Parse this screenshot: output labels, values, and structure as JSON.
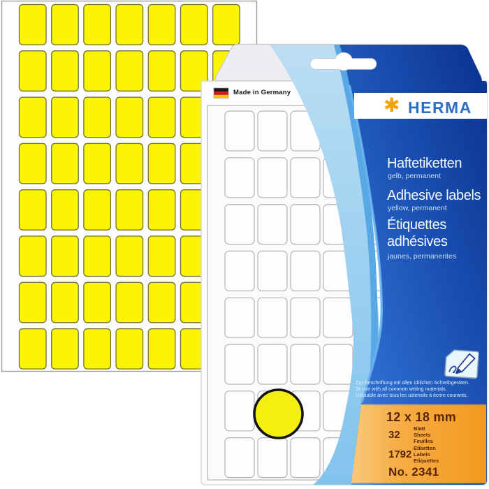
{
  "brand": {
    "name": "HERMA",
    "asterisk_glyph": "✱",
    "asterisk_color": "#f2a30a",
    "name_color": "#2d6ec4"
  },
  "origin": {
    "label": "Made in Germany"
  },
  "titles": [
    {
      "main": "Haftetiketten",
      "sub": "gelb, permanent"
    },
    {
      "main": "Adhesive labels",
      "sub": "yellow, permanent"
    },
    {
      "main": "Étiquettes adhésives",
      "sub": "jaunes, permanentes"
    }
  ],
  "usage_notes": [
    "Zur Beschriftung mit allen üblichen Schreibgeräten.",
    "To use with all common writing materials.",
    "Utilisable avec tous les ustensils à écrire courants."
  ],
  "specs": {
    "size": "12 x 18 mm",
    "sheet_count": "32",
    "sheet_count_labels": [
      "Blatt",
      "Sheets",
      "Feuilles"
    ],
    "label_count": "1792",
    "label_count_labels": [
      "Etiketten",
      "Labels",
      "Etiquettes"
    ],
    "order_number": "No. 2341"
  },
  "colors": {
    "label_yellow": "#fbf402",
    "panel_blue_dark": "#0a3190",
    "panel_blue_mid": "#1b51b2",
    "panel_blue_light": "#5fa7e6",
    "swoosh_blue": "#9cd0f0",
    "spec_box_orange": "#f3991d",
    "spec_text_brown": "#5a2505",
    "brand_orange": "#f2a30a",
    "brand_blue": "#2d6ec4"
  },
  "grids": {
    "yellow_sheet": {
      "columns": 7,
      "rows": 8,
      "label_fill": "#fbf402",
      "label_stroke": "#6f6f3e"
    },
    "package_sheet": {
      "columns": 6,
      "rows": 8,
      "label_fill": "#fdfdfe",
      "label_stroke": "#b3b3b8"
    },
    "sample_dot": {
      "fill": "#f5ee10",
      "stroke": "#141414"
    }
  }
}
